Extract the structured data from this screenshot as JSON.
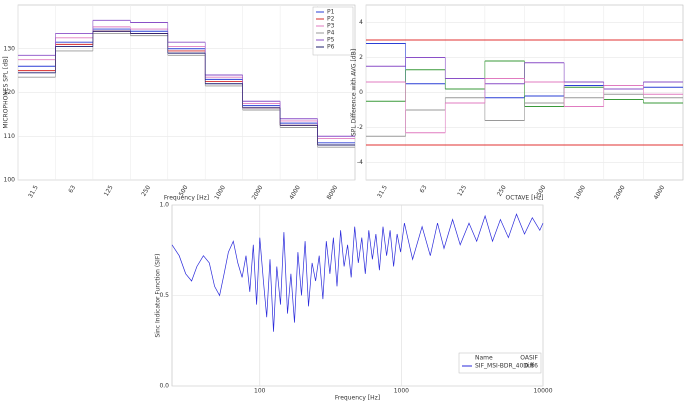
{
  "chart_data": [
    {
      "type": "step",
      "x_label": "Frequency [Hz]",
      "y_label": "MICROPHONES SPL [dB]",
      "categories": [
        "31.5",
        "63",
        "125",
        "250",
        "500",
        "1000",
        "2000",
        "4000",
        "8000"
      ],
      "ylim": [
        100,
        140
      ],
      "yticks": [
        100,
        110,
        120,
        130
      ],
      "grid": true,
      "legend": "upper right",
      "series": [
        {
          "name": "P1",
          "color": "#2a3fd6",
          "values": [
            126,
            131.5,
            134.5,
            134,
            130,
            123,
            117,
            113,
            108.5
          ]
        },
        {
          "name": "P2",
          "color": "#d62a2a",
          "values": [
            125,
            131,
            134,
            133.5,
            129.5,
            122.5,
            116.5,
            112.5,
            108
          ]
        },
        {
          "name": "P3",
          "color": "#e07bc0",
          "values": [
            127.5,
            132.5,
            135,
            134.5,
            130.5,
            123.5,
            117.5,
            113.5,
            109.5
          ]
        },
        {
          "name": "P4",
          "color": "#999999",
          "values": [
            123.5,
            129.5,
            133.5,
            133,
            128.5,
            121.5,
            116,
            112,
            107.5
          ]
        },
        {
          "name": "P5",
          "color": "#8a4fc7",
          "values": [
            128.5,
            133.5,
            136.5,
            136,
            131.5,
            124,
            118,
            114,
            110
          ]
        },
        {
          "name": "P6",
          "color": "#1c1c6e",
          "values": [
            124.5,
            130.5,
            134,
            133.5,
            129,
            122,
            116.5,
            112.5,
            108
          ]
        }
      ]
    },
    {
      "type": "step",
      "x_label": "OCTAVE [Hz]",
      "y_label": "SPL Difference with AVG [dB]",
      "categories": [
        "31.5",
        "63",
        "125",
        "250",
        "500",
        "1000",
        "2000",
        "4000"
      ],
      "ylim": [
        -5,
        5
      ],
      "yticks": [
        -4,
        -2,
        0,
        2,
        4
      ],
      "grid": true,
      "hlines": [
        3,
        -3
      ],
      "hline_color": "#e03030",
      "series": [
        {
          "color": "#2a3fd6",
          "values": [
            2.8,
            0.5,
            0.2,
            -0.3,
            -0.2,
            0.4,
            0.2,
            0.3
          ]
        },
        {
          "color": "#3a9a3a",
          "values": [
            -0.5,
            1.3,
            0.2,
            1.8,
            -0.8,
            0.3,
            -0.4,
            -0.6
          ]
        },
        {
          "color": "#8a4fc7",
          "values": [
            1.5,
            2.0,
            0.8,
            0.5,
            1.7,
            0.6,
            0.2,
            0.6
          ]
        },
        {
          "color": "#999999",
          "values": [
            -2.5,
            -1.0,
            -0.3,
            -1.6,
            -0.6,
            -0.3,
            -0.1,
            -0.3
          ]
        },
        {
          "color": "#e07bc0",
          "values": [
            0.6,
            -2.3,
            -0.6,
            0.8,
            0.6,
            -0.8,
            0.4,
            -0.1
          ]
        }
      ]
    },
    {
      "type": "line",
      "x_label": "Frequency [Hz]",
      "y_label": "Sinc Indicator Function (SIF)",
      "xscale": "log",
      "xlim": [
        24,
        10000
      ],
      "xticks": [
        100,
        1000,
        10000
      ],
      "ylim": [
        0,
        1
      ],
      "yticks": [
        {
          "value": 0,
          "label": "0.0"
        },
        0.5,
        {
          "value": 1,
          "label": "1.0"
        }
      ],
      "grid": true,
      "legend": "lower right",
      "legend_columns": [
        "Name",
        "OASIF"
      ],
      "x": [
        24,
        27,
        30,
        33,
        36,
        40,
        44,
        48,
        52,
        56,
        60,
        65,
        70,
        75,
        80,
        85,
        90,
        95,
        100,
        106,
        112,
        118,
        125,
        132,
        140,
        148,
        157,
        166,
        176,
        186,
        197,
        209,
        221,
        234,
        248,
        263,
        279,
        295,
        313,
        331,
        351,
        372,
        394,
        417,
        442,
        468,
        496,
        525,
        556,
        589,
        624,
        661,
        700,
        742,
        786,
        832,
        881,
        933,
        988,
        1050,
        1200,
        1400,
        1600,
        1800,
        2000,
        2300,
        2600,
        3000,
        3400,
        3900,
        4400,
        5000,
        5700,
        6500,
        7400,
        8400,
        9500,
        10000
      ],
      "series": [
        {
          "name": "SIF_MSI-BDR_40Diff",
          "oasif": 0.86,
          "color": "#2a2adb",
          "values": [
            0.78,
            0.72,
            0.62,
            0.58,
            0.66,
            0.72,
            0.68,
            0.55,
            0.5,
            0.62,
            0.74,
            0.8,
            0.68,
            0.6,
            0.72,
            0.52,
            0.78,
            0.45,
            0.82,
            0.58,
            0.38,
            0.7,
            0.3,
            0.66,
            0.45,
            0.85,
            0.4,
            0.62,
            0.35,
            0.74,
            0.5,
            0.8,
            0.44,
            0.68,
            0.58,
            0.72,
            0.48,
            0.8,
            0.62,
            0.82,
            0.55,
            0.86,
            0.66,
            0.78,
            0.6,
            0.88,
            0.68,
            0.82,
            0.62,
            0.86,
            0.7,
            0.84,
            0.64,
            0.88,
            0.72,
            0.86,
            0.66,
            0.84,
            0.74,
            0.9,
            0.7,
            0.88,
            0.72,
            0.9,
            0.76,
            0.92,
            0.78,
            0.9,
            0.8,
            0.94,
            0.8,
            0.92,
            0.82,
            0.95,
            0.84,
            0.93,
            0.86,
            0.9
          ]
        }
      ]
    }
  ]
}
